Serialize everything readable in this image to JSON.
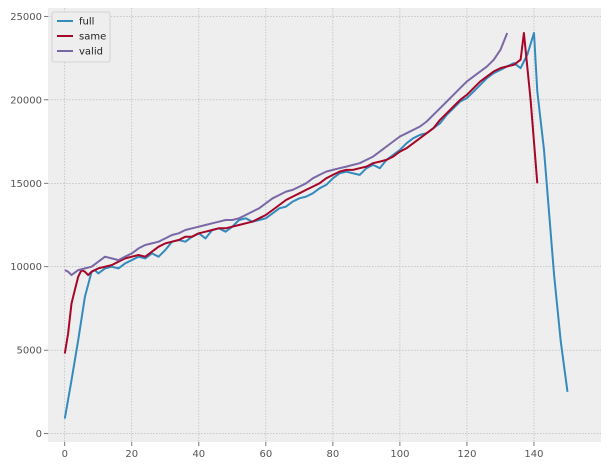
{
  "chart_data": {
    "type": "line",
    "title": "",
    "xlabel": "",
    "ylabel": "",
    "xlim": [
      -5,
      160
    ],
    "ylim": [
      -500,
      25500
    ],
    "xticks": [
      0,
      20,
      40,
      60,
      80,
      100,
      120,
      140
    ],
    "yticks": [
      0,
      5000,
      10000,
      15000,
      20000,
      25000
    ],
    "grid": true,
    "legend_position": "upper-left",
    "series": [
      {
        "name": "full",
        "color": "#348abd",
        "x": [
          0,
          2,
          4,
          6,
          8,
          9,
          10,
          12,
          14,
          16,
          18,
          20,
          22,
          24,
          26,
          28,
          30,
          32,
          34,
          36,
          38,
          40,
          42,
          44,
          46,
          48,
          50,
          52,
          54,
          56,
          58,
          60,
          62,
          64,
          66,
          68,
          70,
          72,
          74,
          76,
          78,
          80,
          82,
          84,
          86,
          88,
          90,
          92,
          94,
          96,
          98,
          100,
          102,
          104,
          106,
          108,
          110,
          112,
          114,
          116,
          118,
          120,
          122,
          124,
          126,
          128,
          130,
          132,
          134,
          136,
          138,
          140,
          141,
          143,
          146,
          148,
          150
        ],
        "y": [
          900,
          3200,
          5600,
          8200,
          9700,
          9800,
          9600,
          9900,
          10000,
          9900,
          10200,
          10400,
          10600,
          10500,
          10800,
          10600,
          11000,
          11500,
          11600,
          11500,
          11800,
          12000,
          11700,
          12200,
          12300,
          12100,
          12400,
          12800,
          12900,
          12700,
          12800,
          12900,
          13200,
          13500,
          13600,
          13900,
          14100,
          14200,
          14400,
          14700,
          14900,
          15300,
          15600,
          15700,
          15600,
          15500,
          15900,
          16100,
          15900,
          16400,
          16700,
          17000,
          17400,
          17700,
          17900,
          18000,
          18300,
          18600,
          19100,
          19500,
          19900,
          20100,
          20500,
          20900,
          21300,
          21600,
          21800,
          22000,
          22200,
          21900,
          22700,
          24000,
          20500,
          17000,
          9500,
          5500,
          2500
        ]
      },
      {
        "name": "same",
        "color": "#a60628",
        "x": [
          0,
          1,
          2,
          3,
          4,
          5,
          6,
          7,
          8,
          10,
          12,
          14,
          16,
          18,
          20,
          22,
          24,
          26,
          28,
          30,
          32,
          34,
          36,
          38,
          40,
          42,
          44,
          46,
          48,
          50,
          52,
          54,
          56,
          58,
          60,
          62,
          64,
          66,
          68,
          70,
          72,
          74,
          76,
          78,
          80,
          82,
          84,
          86,
          88,
          90,
          92,
          94,
          96,
          98,
          100,
          102,
          104,
          106,
          108,
          110,
          112,
          114,
          116,
          118,
          120,
          122,
          124,
          126,
          128,
          130,
          132,
          134,
          136,
          137,
          139,
          141
        ],
        "y": [
          4800,
          6000,
          7800,
          8600,
          9400,
          9800,
          9700,
          9500,
          9700,
          9900,
          10000,
          10100,
          10300,
          10500,
          10600,
          10700,
          10600,
          10900,
          11200,
          11400,
          11500,
          11600,
          11800,
          11800,
          12000,
          12100,
          12200,
          12300,
          12300,
          12400,
          12500,
          12600,
          12700,
          12900,
          13100,
          13400,
          13700,
          14000,
          14200,
          14400,
          14600,
          14800,
          15000,
          15300,
          15500,
          15700,
          15800,
          15800,
          15900,
          16000,
          16200,
          16300,
          16400,
          16600,
          16900,
          17100,
          17400,
          17700,
          18000,
          18300,
          18800,
          19200,
          19600,
          20000,
          20300,
          20700,
          21100,
          21400,
          21700,
          21900,
          22000,
          22100,
          22400,
          24000,
          20000,
          15000
        ]
      },
      {
        "name": "valid",
        "color": "#7a68a6",
        "x": [
          0,
          1,
          2,
          4,
          6,
          8,
          10,
          12,
          14,
          16,
          18,
          20,
          22,
          24,
          26,
          28,
          30,
          32,
          34,
          36,
          38,
          40,
          42,
          44,
          46,
          48,
          50,
          52,
          54,
          56,
          58,
          60,
          62,
          64,
          66,
          68,
          70,
          72,
          74,
          76,
          78,
          80,
          82,
          84,
          86,
          88,
          90,
          92,
          94,
          96,
          98,
          100,
          102,
          104,
          106,
          108,
          110,
          112,
          114,
          116,
          118,
          120,
          122,
          124,
          126,
          128,
          130,
          132
        ],
        "y": [
          9800,
          9700,
          9500,
          9800,
          9900,
          10000,
          10300,
          10600,
          10500,
          10400,
          10600,
          10800,
          11100,
          11300,
          11400,
          11500,
          11700,
          11900,
          12000,
          12200,
          12300,
          12400,
          12500,
          12600,
          12700,
          12800,
          12800,
          12900,
          13100,
          13300,
          13500,
          13800,
          14100,
          14300,
          14500,
          14600,
          14800,
          15000,
          15300,
          15500,
          15700,
          15800,
          15900,
          16000,
          16100,
          16200,
          16400,
          16600,
          16900,
          17200,
          17500,
          17800,
          18000,
          18200,
          18400,
          18700,
          19100,
          19500,
          19900,
          20300,
          20700,
          21100,
          21400,
          21700,
          22000,
          22400,
          23000,
          24000
        ]
      }
    ]
  }
}
